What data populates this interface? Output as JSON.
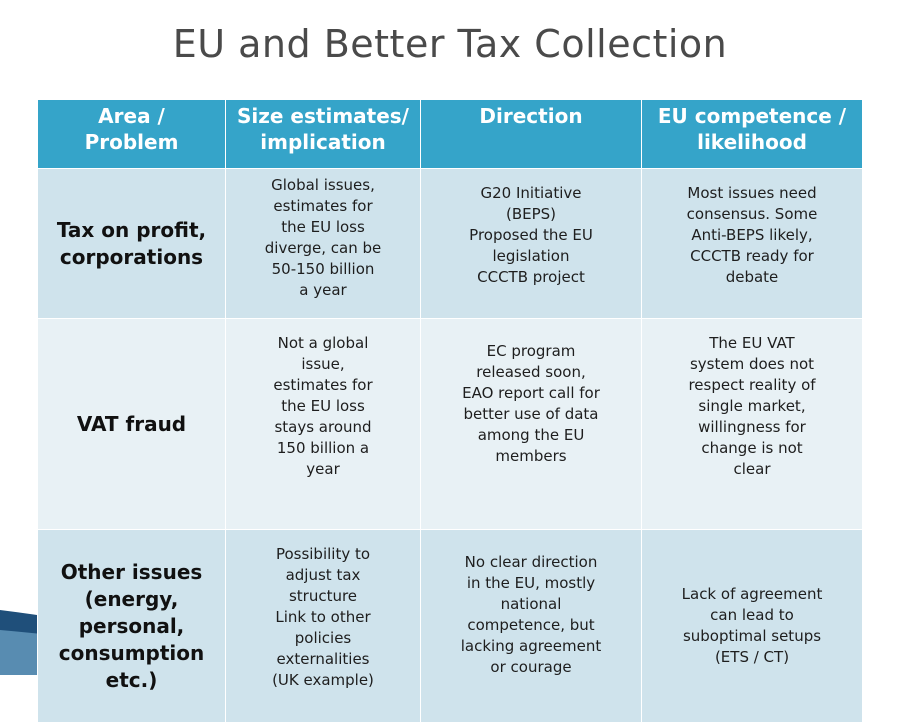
{
  "slide": {
    "title": "EU and Better Tax Collection"
  },
  "table": {
    "headers": [
      "Area /\nProblem",
      "Size estimates/\nimplication",
      "Direction",
      "EU competence /\nlikelihood"
    ],
    "rows": [
      {
        "area": "Tax on profit,\ncorporations",
        "size": "Global issues,\nestimates for\nthe EU loss\ndiverge, can be\n50-150 billion\na year",
        "direction": "G20 Initiative\n(BEPS)\nProposed the EU\nlegislation\nCCCTB project",
        "competence": "Most issues need\nconsensus. Some\nAnti-BEPS likely,\nCCCTB ready for\ndebate"
      },
      {
        "area": "VAT fraud",
        "size": "Not a global\nissue,\nestimates for\nthe EU loss\nstays around\n150 billion a\nyear",
        "direction": "EC program\nreleased soon,\nEAO report call for\nbetter use of data\namong the EU\nmembers",
        "competence": "The EU VAT\nsystem does not\nrespect reality of\nsingle market,\nwillingness for\nchange is not\nclear"
      },
      {
        "area": "Other issues\n(energy,\npersonal,\nconsumption\netc.)",
        "size": "Possibility to\nadjust tax\nstructure\nLink to other\npolicies\nexternalities\n(UK example)",
        "direction": "No clear direction\nin the EU, mostly\nnational\ncompetence, but\nlacking agreement\nor courage",
        "competence": "Lack of agreement\ncan lead to\nsuboptimal setups\n(ETS / CT)"
      }
    ]
  },
  "colors": {
    "header_bg": "#35a4c9",
    "row_dark": "#cfe3ec",
    "row_light": "#e8f1f5",
    "title_text": "#4a4a4a",
    "deco_dark": "#1f4f7a"
  }
}
